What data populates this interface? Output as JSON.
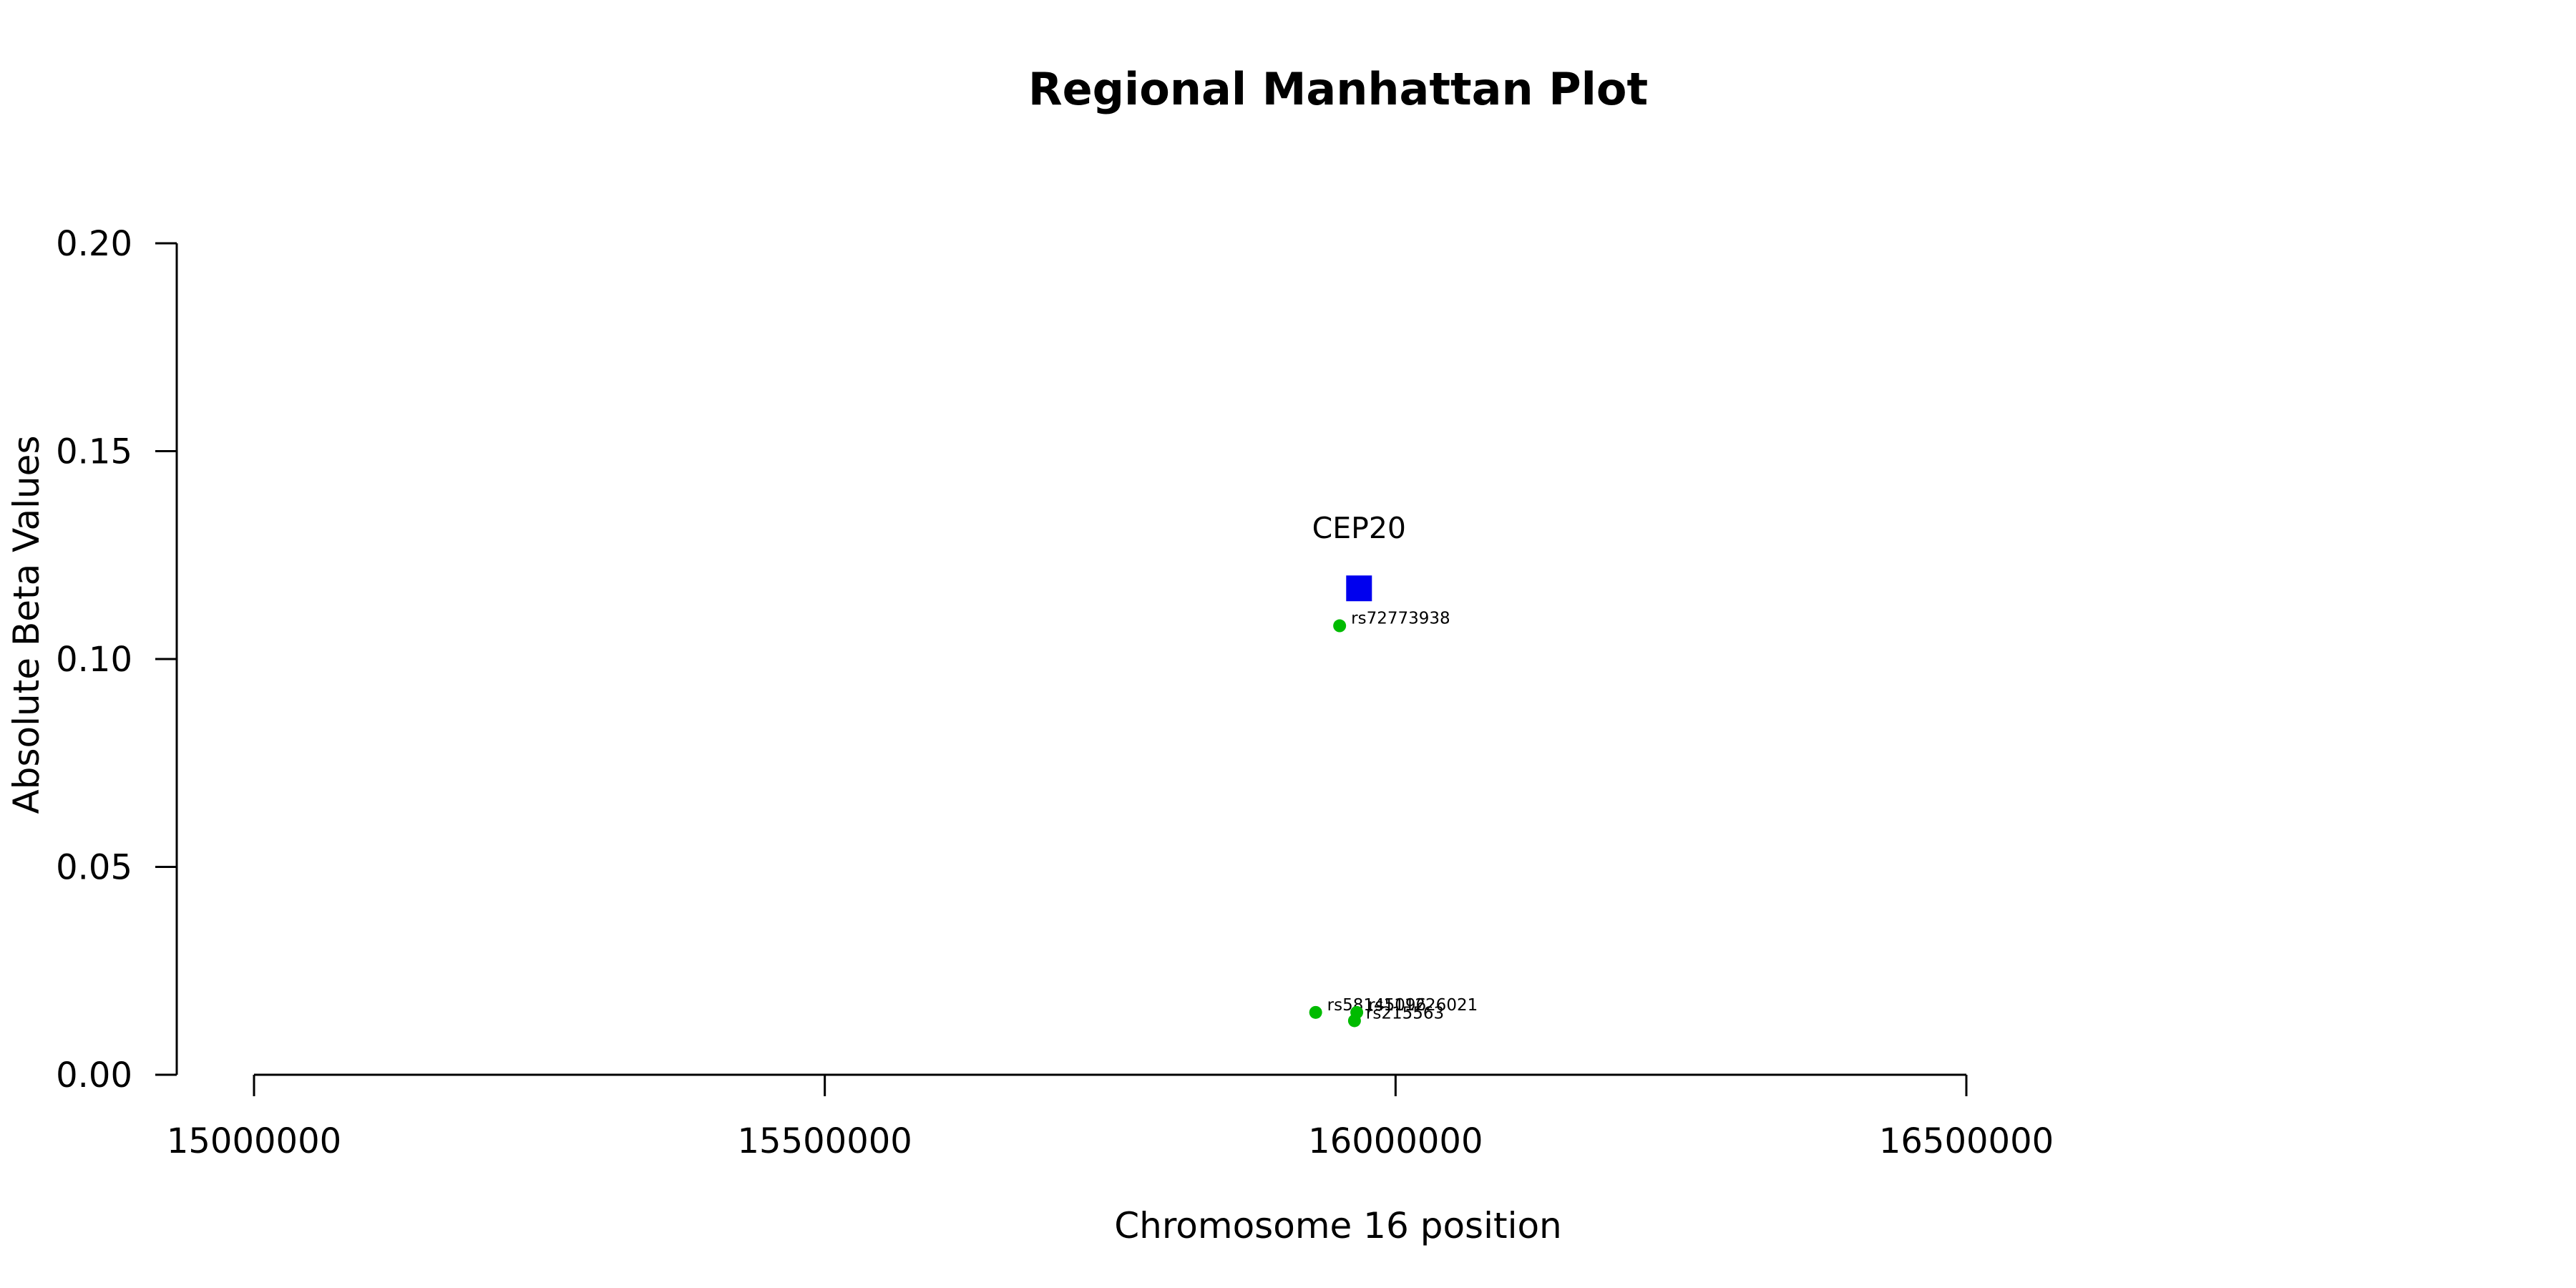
{
  "chart_data": {
    "type": "scatter",
    "title": "Regional Manhattan Plot",
    "xlabel": "Chromosome 16 position",
    "ylabel": "Absolute Beta Values",
    "xlim": [
      15000000,
      16500000
    ],
    "ylim": [
      0,
      0.2
    ],
    "xticks": [
      15000000,
      15500000,
      16000000,
      16500000
    ],
    "yticks": [
      "0.00",
      "0.05",
      "0.10",
      "0.15",
      "0.20"
    ],
    "grid": false,
    "gene": {
      "name": "CEP20",
      "x": 15968000,
      "y": 0.117,
      "color": "#0000ee",
      "marker": "square"
    },
    "snp_color": "#00bb00",
    "snps": [
      {
        "label": "rs72773938",
        "x": 15951000,
        "y": 0.108
      },
      {
        "label": "rs58145096",
        "x": 15930000,
        "y": 0.015
      },
      {
        "label": "rs111226021",
        "x": 15966000,
        "y": 0.015
      },
      {
        "label": "rs215563",
        "x": 15964000,
        "y": 0.013
      }
    ]
  }
}
